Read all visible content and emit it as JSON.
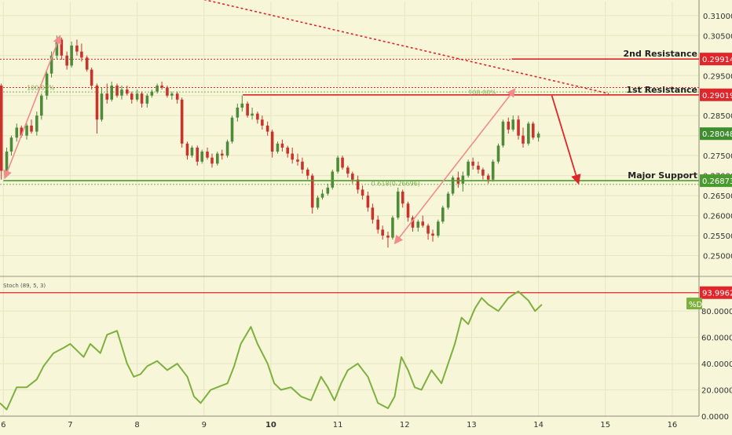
{
  "chart_data": {
    "type": "candlestick",
    "colors": {
      "background": "#f7f6d8",
      "grid": "#e6e5c4",
      "axis_text": "#333333",
      "resistance": "#e0252b",
      "support": "#4a9b2f",
      "fib": "#7fb05a",
      "arrow_pink": "#f08c8c",
      "candle_up": "#4f8a3a",
      "candle_down": "#c8342c",
      "current_price": "#3f8d2f",
      "stoch_line": "#7eb040"
    },
    "price_axis": {
      "ylim": [
        0.2452,
        0.3135
      ],
      "ticks": [
        "0.31000",
        "0.30500",
        "0.30000",
        "0.29500",
        "0.29000",
        "0.28500",
        "0.28000",
        "0.27500",
        "0.27000",
        "0.26500",
        "0.26000",
        "0.25500",
        "0.25000"
      ]
    },
    "x_axis": {
      "xlim": [
        5.95,
        16.4
      ],
      "ticks": [
        {
          "x": 6,
          "label": "6"
        },
        {
          "x": 7,
          "label": "7"
        },
        {
          "x": 8,
          "label": "8"
        },
        {
          "x": 9,
          "label": "9"
        },
        {
          "x": 10,
          "label": "10",
          "bold": true
        },
        {
          "x": 11,
          "label": "11"
        },
        {
          "x": 12,
          "label": "12"
        },
        {
          "x": 13,
          "label": "13"
        },
        {
          "x": 14,
          "label": "14"
        },
        {
          "x": 15,
          "label": "15"
        },
        {
          "x": 16,
          "label": "16"
        }
      ]
    },
    "levels": [
      {
        "name": "2nd Resistance",
        "value": 0.29914,
        "label": "0.29914",
        "x_start": 13.6,
        "kind": "resistance"
      },
      {
        "name": "1st Resistance",
        "value": 0.29019,
        "label": "0.29019",
        "x_start": 9.58,
        "kind": "resistance"
      },
      {
        "name": "Major Support",
        "value": 0.26873,
        "label": "0.26873",
        "x_start": 6.0,
        "kind": "support"
      }
    ],
    "dotted_lines": [
      {
        "value": 0.2991,
        "color": "resistance"
      },
      {
        "value": 0.292,
        "color": "resistance"
      },
      {
        "value": 0.2909,
        "color": "fib"
      },
      {
        "value": 0.2678,
        "color": "fib"
      }
    ],
    "fib_labels": [
      {
        "text": "100.00%",
        "x": 6.35,
        "y": 0.2914
      },
      {
        "text": "100.00%",
        "x": 12.95,
        "y": 0.2902
      },
      {
        "text": "0.618(0.26696)",
        "x": 11.5,
        "y": 0.2675
      }
    ],
    "current_price": {
      "value": 0.28048,
      "label": "0.28048"
    },
    "trend_line": {
      "from": [
        9.0,
        0.314
      ],
      "to": [
        15.05,
        0.2905
      ]
    },
    "swing_arrows": [
      {
        "from": [
          6.02,
          0.2693
        ],
        "to": [
          6.85,
          0.305
        ]
      },
      {
        "from": [
          11.85,
          0.253
        ],
        "to": [
          13.65,
          0.2917
        ]
      }
    ],
    "projection_arrow": {
      "from": [
        14.2,
        0.29
      ],
      "to": [
        14.6,
        0.268
      ]
    },
    "candles": [
      [
        5.9,
        0.2915,
        0.2935,
        0.2895,
        0.2925
      ],
      [
        5.97,
        0.2925,
        0.293,
        0.269,
        0.2712
      ],
      [
        6.05,
        0.2712,
        0.277,
        0.27,
        0.276
      ],
      [
        6.12,
        0.276,
        0.28,
        0.275,
        0.2795
      ],
      [
        6.2,
        0.2795,
        0.283,
        0.2785,
        0.282
      ],
      [
        6.27,
        0.282,
        0.2825,
        0.2795,
        0.28
      ],
      [
        6.35,
        0.28,
        0.283,
        0.279,
        0.2825
      ],
      [
        6.42,
        0.2825,
        0.284,
        0.2805,
        0.281
      ],
      [
        6.5,
        0.281,
        0.286,
        0.28,
        0.285
      ],
      [
        6.57,
        0.285,
        0.2905,
        0.284,
        0.29
      ],
      [
        6.65,
        0.29,
        0.296,
        0.289,
        0.2955
      ],
      [
        6.72,
        0.2955,
        0.301,
        0.2945,
        0.3
      ],
      [
        6.8,
        0.3,
        0.305,
        0.299,
        0.304
      ],
      [
        6.87,
        0.304,
        0.3045,
        0.299,
        0.3
      ],
      [
        6.95,
        0.3,
        0.301,
        0.2965,
        0.2975
      ],
      [
        7.02,
        0.2975,
        0.3035,
        0.297,
        0.3025
      ],
      [
        7.1,
        0.3025,
        0.304,
        0.3,
        0.301
      ],
      [
        7.17,
        0.301,
        0.303,
        0.2985,
        0.2995
      ],
      [
        7.25,
        0.2995,
        0.3,
        0.296,
        0.2965
      ],
      [
        7.32,
        0.2965,
        0.297,
        0.2915,
        0.2925
      ],
      [
        7.4,
        0.2925,
        0.293,
        0.2805,
        0.284
      ],
      [
        7.47,
        0.284,
        0.292,
        0.2835,
        0.2905
      ],
      [
        7.55,
        0.2905,
        0.293,
        0.288,
        0.289
      ],
      [
        7.62,
        0.289,
        0.2935,
        0.2885,
        0.2925
      ],
      [
        7.7,
        0.2925,
        0.293,
        0.2895,
        0.29
      ],
      [
        7.77,
        0.29,
        0.2925,
        0.289,
        0.2915
      ],
      [
        7.85,
        0.2915,
        0.2925,
        0.29,
        0.2905
      ],
      [
        7.92,
        0.2905,
        0.291,
        0.288,
        0.289
      ],
      [
        8.0,
        0.289,
        0.2915,
        0.2885,
        0.2905
      ],
      [
        8.07,
        0.2905,
        0.291,
        0.287,
        0.288
      ],
      [
        8.15,
        0.288,
        0.2905,
        0.287,
        0.29
      ],
      [
        8.22,
        0.29,
        0.2915,
        0.2895,
        0.291
      ],
      [
        8.3,
        0.291,
        0.293,
        0.2905,
        0.2925
      ],
      [
        8.37,
        0.2925,
        0.2935,
        0.2915,
        0.292
      ],
      [
        8.45,
        0.292,
        0.2925,
        0.2895,
        0.29
      ],
      [
        8.52,
        0.29,
        0.291,
        0.289,
        0.2905
      ],
      [
        8.6,
        0.2905,
        0.291,
        0.288,
        0.289
      ],
      [
        8.67,
        0.289,
        0.2895,
        0.277,
        0.278
      ],
      [
        8.75,
        0.278,
        0.2785,
        0.274,
        0.275
      ],
      [
        8.82,
        0.275,
        0.2775,
        0.2745,
        0.277
      ],
      [
        8.9,
        0.277,
        0.2775,
        0.2725,
        0.2735
      ],
      [
        8.97,
        0.2735,
        0.2765,
        0.273,
        0.276
      ],
      [
        9.05,
        0.276,
        0.277,
        0.274,
        0.2745
      ],
      [
        9.12,
        0.2745,
        0.2755,
        0.272,
        0.273
      ],
      [
        9.2,
        0.273,
        0.276,
        0.2725,
        0.2755
      ],
      [
        9.27,
        0.2755,
        0.2765,
        0.274,
        0.275
      ],
      [
        9.35,
        0.275,
        0.279,
        0.2745,
        0.2785
      ],
      [
        9.42,
        0.2785,
        0.285,
        0.278,
        0.2845
      ],
      [
        9.5,
        0.2845,
        0.288,
        0.2835,
        0.287
      ],
      [
        9.57,
        0.287,
        0.29,
        0.286,
        0.288
      ],
      [
        9.65,
        0.288,
        0.2885,
        0.2845,
        0.285
      ],
      [
        9.72,
        0.285,
        0.287,
        0.284,
        0.2855
      ],
      [
        9.8,
        0.2855,
        0.286,
        0.283,
        0.284
      ],
      [
        9.87,
        0.284,
        0.285,
        0.2815,
        0.2825
      ],
      [
        9.95,
        0.2825,
        0.2835,
        0.28,
        0.281
      ],
      [
        10.02,
        0.281,
        0.2815,
        0.2745,
        0.276
      ],
      [
        10.1,
        0.276,
        0.2785,
        0.2755,
        0.278
      ],
      [
        10.17,
        0.278,
        0.279,
        0.276,
        0.277
      ],
      [
        10.25,
        0.277,
        0.2775,
        0.2745,
        0.2755
      ],
      [
        10.32,
        0.2755,
        0.277,
        0.273,
        0.274
      ],
      [
        10.4,
        0.274,
        0.2755,
        0.2725,
        0.2735
      ],
      [
        10.47,
        0.2735,
        0.2745,
        0.2705,
        0.2715
      ],
      [
        10.55,
        0.2715,
        0.272,
        0.269,
        0.27
      ],
      [
        10.62,
        0.27,
        0.2705,
        0.2605,
        0.262
      ],
      [
        10.7,
        0.262,
        0.265,
        0.2615,
        0.2645
      ],
      [
        10.77,
        0.2645,
        0.2665,
        0.264,
        0.2655
      ],
      [
        10.85,
        0.2655,
        0.268,
        0.265,
        0.267
      ],
      [
        10.92,
        0.267,
        0.2715,
        0.2665,
        0.271
      ],
      [
        11.0,
        0.271,
        0.275,
        0.2705,
        0.2745
      ],
      [
        11.07,
        0.2745,
        0.275,
        0.2715,
        0.272
      ],
      [
        11.15,
        0.272,
        0.2725,
        0.2695,
        0.2705
      ],
      [
        11.22,
        0.2705,
        0.271,
        0.268,
        0.269
      ],
      [
        11.3,
        0.269,
        0.27,
        0.2655,
        0.2665
      ],
      [
        11.37,
        0.2665,
        0.2675,
        0.264,
        0.265
      ],
      [
        11.45,
        0.265,
        0.266,
        0.261,
        0.262
      ],
      [
        11.52,
        0.262,
        0.263,
        0.258,
        0.259
      ],
      [
        11.6,
        0.259,
        0.26,
        0.2555,
        0.2565
      ],
      [
        11.67,
        0.2565,
        0.2575,
        0.254,
        0.255
      ],
      [
        11.75,
        0.255,
        0.256,
        0.252,
        0.2545
      ],
      [
        11.82,
        0.2545,
        0.26,
        0.254,
        0.2595
      ],
      [
        11.9,
        0.2595,
        0.267,
        0.259,
        0.266
      ],
      [
        11.97,
        0.266,
        0.2665,
        0.262,
        0.263
      ],
      [
        12.05,
        0.263,
        0.2635,
        0.2585,
        0.2595
      ],
      [
        12.12,
        0.2595,
        0.26,
        0.256,
        0.257
      ],
      [
        12.2,
        0.257,
        0.259,
        0.256,
        0.2585
      ],
      [
        12.27,
        0.2585,
        0.26,
        0.257,
        0.2575
      ],
      [
        12.35,
        0.2575,
        0.258,
        0.254,
        0.2555
      ],
      [
        12.42,
        0.2555,
        0.2565,
        0.2535,
        0.255
      ],
      [
        12.5,
        0.255,
        0.259,
        0.2545,
        0.2585
      ],
      [
        12.57,
        0.2585,
        0.2625,
        0.258,
        0.262
      ],
      [
        12.65,
        0.262,
        0.266,
        0.2615,
        0.2655
      ],
      [
        12.72,
        0.2655,
        0.27,
        0.265,
        0.2695
      ],
      [
        12.8,
        0.2695,
        0.271,
        0.267,
        0.268
      ],
      [
        12.87,
        0.268,
        0.271,
        0.266,
        0.27
      ],
      [
        12.95,
        0.27,
        0.274,
        0.2695,
        0.2735
      ],
      [
        13.02,
        0.2735,
        0.2745,
        0.2715,
        0.2725
      ],
      [
        13.1,
        0.2725,
        0.2735,
        0.2705,
        0.2715
      ],
      [
        13.17,
        0.2715,
        0.272,
        0.269,
        0.27
      ],
      [
        13.25,
        0.27,
        0.2705,
        0.268,
        0.269
      ],
      [
        13.32,
        0.269,
        0.274,
        0.2685,
        0.2735
      ],
      [
        13.4,
        0.2735,
        0.278,
        0.273,
        0.2775
      ],
      [
        13.47,
        0.2775,
        0.284,
        0.277,
        0.2835
      ],
      [
        13.55,
        0.2835,
        0.2845,
        0.2805,
        0.2815
      ],
      [
        13.62,
        0.2815,
        0.285,
        0.281,
        0.284
      ],
      [
        13.7,
        0.284,
        0.285,
        0.279,
        0.28
      ],
      [
        13.77,
        0.28,
        0.282,
        0.277,
        0.278
      ],
      [
        13.85,
        0.278,
        0.2835,
        0.2775,
        0.283
      ],
      [
        13.92,
        0.283,
        0.2835,
        0.279,
        0.2795
      ],
      [
        14.0,
        0.2795,
        0.281,
        0.2785,
        0.2805
      ]
    ],
    "stochastic": {
      "label": "Stoch (89, 5, 3)",
      "line_label": "%D",
      "ylim": [
        0,
        104
      ],
      "ticks": [
        "80.0000",
        "60.0000",
        "40.0000",
        "20.0000",
        "0.0000"
      ],
      "overbought": {
        "value": 93.9962,
        "label": "93.9962"
      },
      "x": [
        5.95,
        6.05,
        6.2,
        6.35,
        6.5,
        6.6,
        6.75,
        6.9,
        7.0,
        7.1,
        7.2,
        7.3,
        7.45,
        7.55,
        7.7,
        7.85,
        7.95,
        8.05,
        8.15,
        8.3,
        8.45,
        8.6,
        8.75,
        8.85,
        8.95,
        9.1,
        9.2,
        9.35,
        9.45,
        9.55,
        9.7,
        9.8,
        9.95,
        10.05,
        10.15,
        10.3,
        10.45,
        10.6,
        10.75,
        10.85,
        10.95,
        11.05,
        11.15,
        11.3,
        11.45,
        11.6,
        11.75,
        11.85,
        11.95,
        12.05,
        12.15,
        12.25,
        12.4,
        12.55,
        12.65,
        12.75,
        12.85,
        12.95,
        13.05,
        13.15,
        13.25,
        13.4,
        13.55,
        13.7,
        13.85,
        13.95,
        14.05
      ],
      "y": [
        10,
        5,
        22,
        22,
        28,
        38,
        48,
        52,
        55,
        50,
        45,
        55,
        48,
        62,
        65,
        40,
        30,
        32,
        38,
        42,
        35,
        40,
        30,
        15,
        10,
        20,
        22,
        25,
        38,
        55,
        68,
        55,
        40,
        25,
        20,
        22,
        15,
        12,
        30,
        22,
        12,
        25,
        35,
        40,
        30,
        10,
        6,
        15,
        45,
        35,
        22,
        20,
        35,
        25,
        40,
        55,
        75,
        70,
        82,
        90,
        85,
        80,
        90,
        95,
        88,
        80,
        85
      ]
    }
  }
}
